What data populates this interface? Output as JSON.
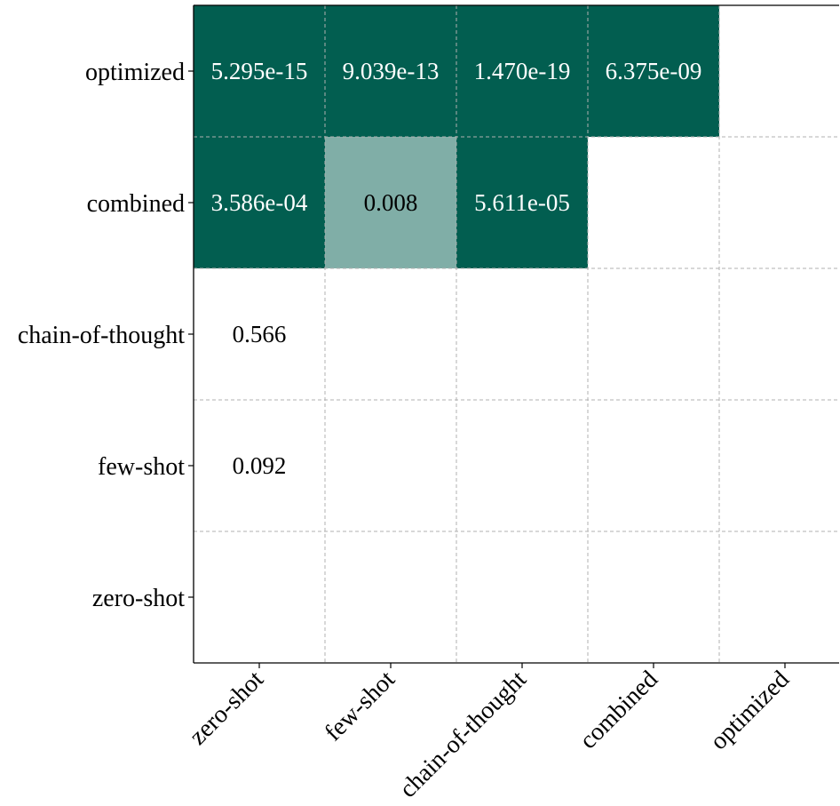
{
  "chart_data": {
    "type": "heatmap",
    "x_categories": [
      "zero-shot",
      "few-shot",
      "chain-of-thought",
      "combined",
      "optimized"
    ],
    "y_categories": [
      "optimized",
      "combined",
      "chain-of-thought",
      "few-shot",
      "zero-shot"
    ],
    "cells": [
      {
        "row": "optimized",
        "col": "zero-shot",
        "label": "5.295e-15",
        "value": 5.295e-15,
        "level": "strong"
      },
      {
        "row": "optimized",
        "col": "few-shot",
        "label": "9.039e-13",
        "value": 9.039e-13,
        "level": "strong"
      },
      {
        "row": "optimized",
        "col": "chain-of-thought",
        "label": "1.470e-19",
        "value": 1.47e-19,
        "level": "strong"
      },
      {
        "row": "optimized",
        "col": "combined",
        "label": "6.375e-09",
        "value": 6.375e-09,
        "level": "strong"
      },
      {
        "row": "combined",
        "col": "zero-shot",
        "label": "3.586e-04",
        "value": 0.0003586,
        "level": "strong"
      },
      {
        "row": "combined",
        "col": "few-shot",
        "label": "0.008",
        "value": 0.008,
        "level": "moderate"
      },
      {
        "row": "combined",
        "col": "chain-of-thought",
        "label": "5.611e-05",
        "value": 5.611e-05,
        "level": "strong"
      },
      {
        "row": "chain-of-thought",
        "col": "zero-shot",
        "label": "0.566",
        "value": 0.566,
        "level": "none"
      },
      {
        "row": "few-shot",
        "col": "zero-shot",
        "label": "0.092",
        "value": 0.092,
        "level": "none"
      }
    ],
    "grid": true,
    "grid_style": "dashed",
    "colors": {
      "strong": "#025e50",
      "moderate": "#80aea7",
      "none": "#ffffff",
      "text_on_strong": "#ffffff",
      "text_on_light": "#000000",
      "grid": "#b0b0b0",
      "axis": "#000000"
    }
  }
}
